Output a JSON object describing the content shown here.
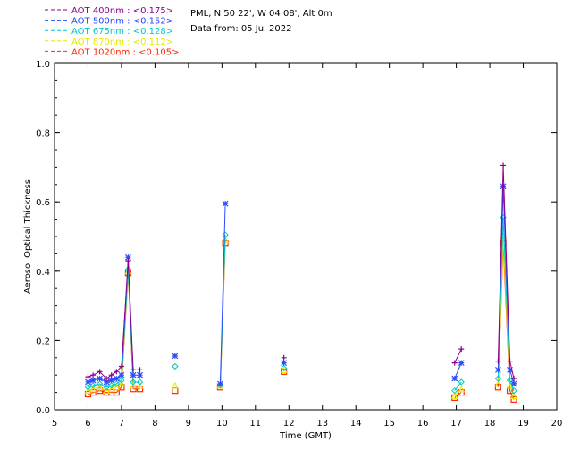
{
  "header": {
    "site": "PML, N 50 22', W 04 08', Alt 0m",
    "date": "Data from: 05 Jul 2022"
  },
  "chart_data": {
    "type": "line",
    "xlabel": "Time (GMT)",
    "ylabel": "Aerosol Optical Thickness",
    "xlim": [
      5,
      20
    ],
    "ylim": [
      0.0,
      1.0
    ],
    "xticks": [
      "5",
      "6",
      "7",
      "8",
      "9",
      "10",
      "11",
      "12",
      "13",
      "14",
      "15",
      "16",
      "17",
      "18",
      "19",
      "20"
    ],
    "yticks": [
      "0.0",
      "0.2",
      "0.4",
      "0.6",
      "0.8",
      "1.0"
    ],
    "legend_position": "top-left-outside",
    "series": [
      {
        "name": "AOT  400nm : <0.175>",
        "color": "#8b008b",
        "marker": "plus",
        "x": [
          6.0,
          6.15,
          6.35,
          6.55,
          6.7,
          6.85,
          7.0,
          7.2,
          7.35,
          7.55,
          11.85,
          16.95,
          17.15,
          18.25,
          18.4,
          18.6,
          18.72
        ],
        "y": [
          0.095,
          0.1,
          0.11,
          0.09,
          0.1,
          0.11,
          0.125,
          0.43,
          0.115,
          0.115,
          0.15,
          0.135,
          0.175,
          0.14,
          0.705,
          0.14,
          0.09
        ]
      },
      {
        "name": "AOT  500nm : <0.152>",
        "color": "#2b4bff",
        "marker": "star",
        "x": [
          6.0,
          6.15,
          6.35,
          6.55,
          6.7,
          6.85,
          7.0,
          7.2,
          7.35,
          7.55,
          8.6,
          9.95,
          10.1,
          11.85,
          16.95,
          17.15,
          18.25,
          18.4,
          18.6,
          18.72
        ],
        "y": [
          0.08,
          0.085,
          0.09,
          0.08,
          0.085,
          0.09,
          0.1,
          0.44,
          0.1,
          0.1,
          0.155,
          0.075,
          0.595,
          0.135,
          0.09,
          0.135,
          0.115,
          0.645,
          0.115,
          0.075
        ]
      },
      {
        "name": "AOT  675nm : <0.128>",
        "color": "#00c8c8",
        "marker": "diamond",
        "x": [
          6.0,
          6.15,
          6.35,
          6.55,
          6.7,
          6.85,
          7.0,
          7.2,
          7.35,
          7.55,
          8.6,
          9.95,
          10.1,
          11.85,
          16.95,
          17.15,
          18.25,
          18.4,
          18.6,
          18.72
        ],
        "y": [
          0.065,
          0.07,
          0.075,
          0.065,
          0.07,
          0.075,
          0.085,
          0.405,
          0.08,
          0.08,
          0.125,
          0.07,
          0.505,
          0.12,
          0.055,
          0.08,
          0.09,
          0.555,
          0.085,
          0.055
        ]
      },
      {
        "name": "AOT  870nm : <0.112>",
        "color": "#e8e800",
        "marker": "triangle",
        "x": [
          6.0,
          6.15,
          6.35,
          6.55,
          6.7,
          6.85,
          7.0,
          7.2,
          7.35,
          7.55,
          8.6,
          9.95,
          10.1,
          11.85,
          16.95,
          17.15,
          18.25,
          18.4,
          18.6,
          18.72
        ],
        "y": [
          0.055,
          0.06,
          0.065,
          0.055,
          0.06,
          0.065,
          0.075,
          0.4,
          0.07,
          0.07,
          0.07,
          0.07,
          0.49,
          0.115,
          0.04,
          0.06,
          0.075,
          0.5,
          0.07,
          0.04
        ]
      },
      {
        "name": "AOT 1020nm : <0.105>",
        "color": "#ff2a00",
        "marker": "square",
        "x": [
          6.0,
          6.15,
          6.35,
          6.55,
          6.7,
          6.85,
          7.0,
          7.2,
          7.35,
          7.55,
          8.6,
          9.95,
          10.1,
          11.85,
          16.95,
          17.15,
          18.25,
          18.4,
          18.6,
          18.72
        ],
        "y": [
          0.045,
          0.05,
          0.055,
          0.05,
          0.05,
          0.05,
          0.065,
          0.395,
          0.06,
          0.06,
          0.055,
          0.065,
          0.48,
          0.11,
          0.035,
          0.05,
          0.065,
          0.48,
          0.055,
          0.03
        ]
      }
    ]
  }
}
